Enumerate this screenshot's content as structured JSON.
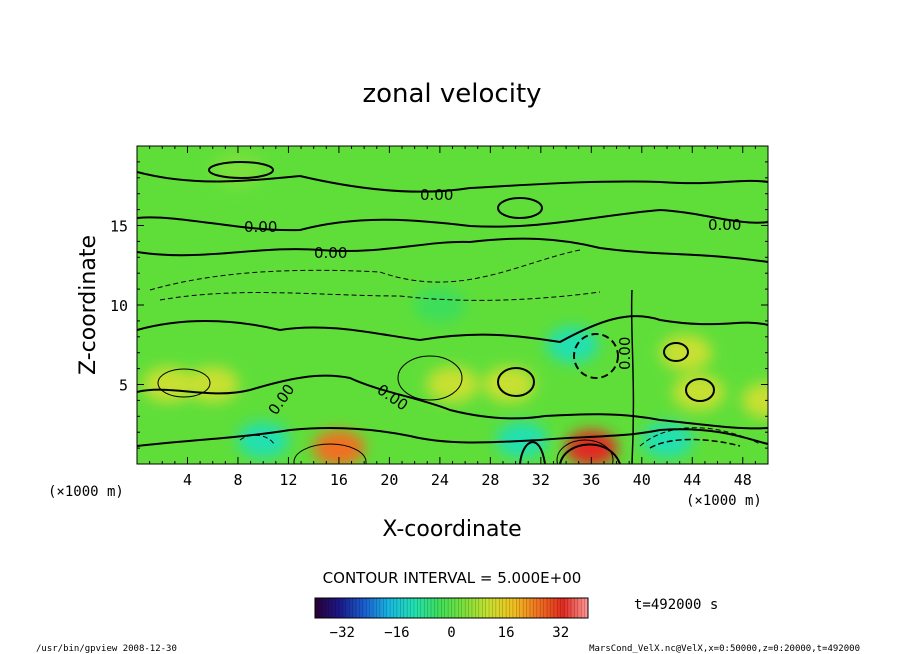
{
  "chart_data": {
    "type": "heatmap",
    "title": "zonal velocity",
    "xlabel": "X-coordinate",
    "ylabel": "Z-coordinate",
    "x_unit": "(×1000 m)",
    "y_unit": "(×1000 m)",
    "xlim": [
      0,
      50
    ],
    "ylim": [
      0,
      20
    ],
    "x_ticks": [
      "4",
      "8",
      "12",
      "16",
      "20",
      "24",
      "28",
      "32",
      "36",
      "40",
      "44",
      "48"
    ],
    "y_ticks": [
      "5",
      "10",
      "15"
    ],
    "contour_interval_text": "CONTOUR INTERVAL = 5.000E+00",
    "contour_label": "0.00",
    "colorbar": {
      "min": -40,
      "max": 40,
      "ticks": [
        "−32",
        "−16",
        "0",
        "16",
        "32"
      ],
      "colors": [
        "#2a0033",
        "#1a1a8a",
        "#1a5fd0",
        "#19b8e0",
        "#22e0b0",
        "#3ede5a",
        "#7ae03a",
        "#c8e030",
        "#f0c020",
        "#f07020",
        "#e02a20",
        "#ff9a9a"
      ]
    },
    "field_regions": [
      {
        "x": 16,
        "z": 1.0,
        "value": 26
      },
      {
        "x": 36,
        "z": 1.0,
        "value": 30
      },
      {
        "x": 34.5,
        "z": 7.5,
        "value": -14
      },
      {
        "x": 29.5,
        "z": 5.0,
        "value": 12
      },
      {
        "x": 43.5,
        "z": 7.0,
        "value": 14
      },
      {
        "x": 44.5,
        "z": 4.5,
        "value": 12
      },
      {
        "x": 30.5,
        "z": 1.5,
        "value": -12
      },
      {
        "x": 42,
        "z": 1.5,
        "value": -10
      },
      {
        "x": 10,
        "z": 1.5,
        "value": -9
      },
      {
        "x": 2.5,
        "z": 5.0,
        "value": 10
      },
      {
        "x": 6,
        "z": 5.0,
        "value": 8
      },
      {
        "x": 25,
        "z": 5.0,
        "value": 8
      },
      {
        "x": 24,
        "z": 10.0,
        "value": -7
      },
      {
        "x": 50,
        "z": 4.0,
        "value": 10
      },
      {
        "x": 8,
        "z": 18.5,
        "value": 6
      }
    ]
  },
  "time_label": "t=492000 s",
  "footer_left": "/usr/bin/gpview  2008-12-30",
  "footer_right": "MarsCond_VelX.nc@VelX,x=0:50000,z=0:20000,t=492000"
}
